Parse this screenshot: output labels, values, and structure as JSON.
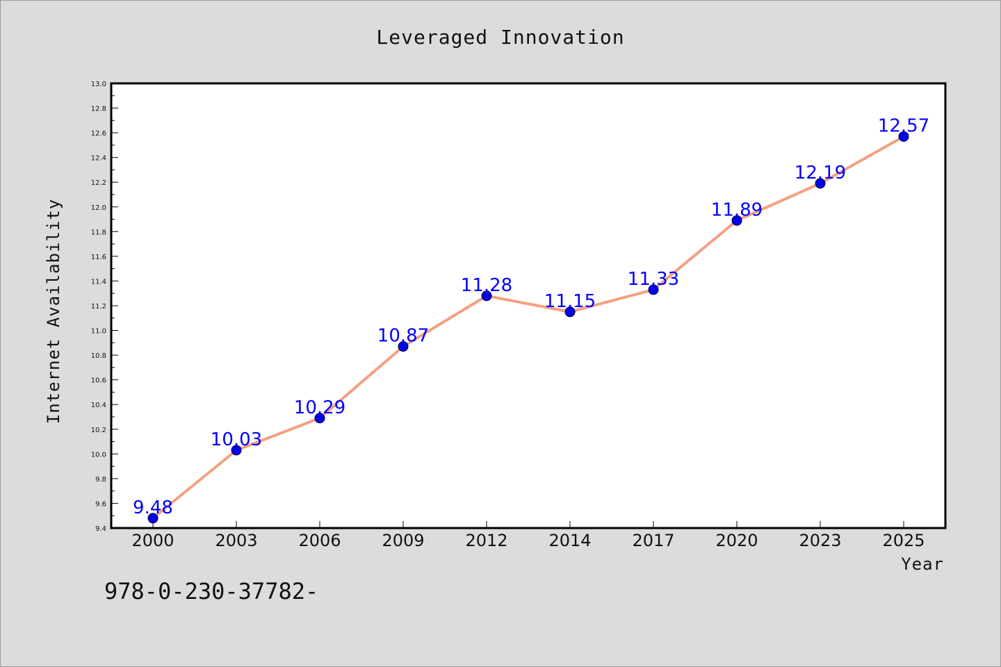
{
  "chart_data": {
    "type": "line",
    "title": "Leveraged Innovation",
    "xlabel": "Year",
    "ylabel": "Internet Availability",
    "categories": [
      "2000",
      "2003",
      "2006",
      "2009",
      "2012",
      "2014",
      "2017",
      "2020",
      "2023",
      "2025"
    ],
    "series": [
      {
        "values": [
          9.48,
          10.03,
          10.29,
          10.87,
          11.28,
          11.15,
          11.33,
          11.89,
          12.19,
          12.57
        ],
        "labels": [
          "9.48",
          "10.03",
          "10.29",
          "10.87",
          "11.28",
          "11.15",
          "11.33",
          "11.89",
          "12.19",
          "12.57"
        ],
        "line_color": "#f4a080",
        "marker_color": "#0000ee"
      }
    ],
    "ylim": [
      9.4,
      13.0
    ],
    "yticks": [
      "9.4",
      "9.6",
      "9.8",
      "10.0",
      "10.2",
      "10.4",
      "10.6",
      "10.8",
      "11.0",
      "11.2",
      "11.4",
      "11.6",
      "11.8",
      "12.0",
      "12.2",
      "12.4",
      "12.6",
      "12.8",
      "13.0"
    ],
    "grid": false,
    "data_label_color": "#0000ff"
  },
  "footnote": "978-0-230-37782-"
}
